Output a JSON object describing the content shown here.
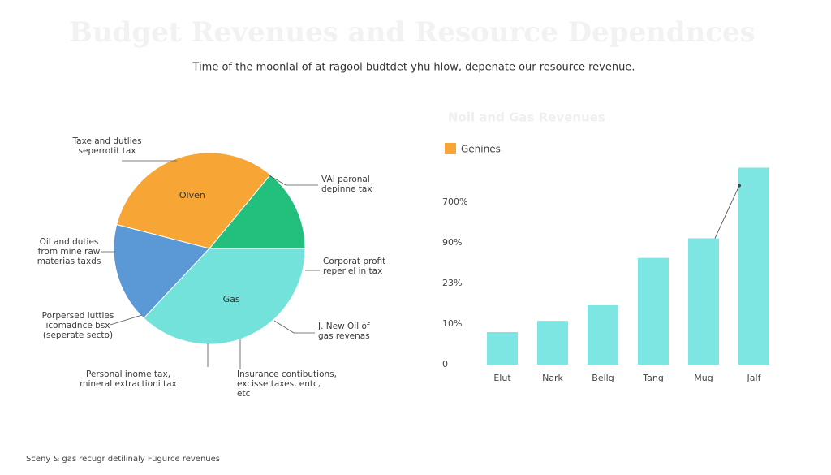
{
  "title": "Budget Revenues and Resource Dependnces",
  "subtitle": "Time  of the moonlal of at ragool budtdet yhu hlow, depenate our resource revenue.",
  "footer": "Sceny & gas recugr detilinaly Fugurce revenues",
  "chart_data": [
    {
      "type": "pie",
      "categories": [
        null,
        "Olven",
        null,
        "Gas"
      ],
      "values": [
        14,
        32,
        17,
        37
      ],
      "colors": [
        "#22c07c",
        "#f7a535",
        "#5b98d6",
        "#72e2da"
      ],
      "annotations": [
        {
          "lines": [
            "Taxe and dutlies",
            "seperrotit tax"
          ]
        },
        {
          "lines": [
            "VAI paronal",
            "depinne tax"
          ]
        },
        {
          "lines": [
            "Oil and duties",
            "from mine raw",
            "materias taxds"
          ]
        },
        {
          "lines": [
            "Corporat profit",
            "reperiel in tax"
          ]
        },
        {
          "lines": [
            "Porpersed lutties",
            "icomadnce bsx",
            "(seperate secto)"
          ]
        },
        {
          "lines": [
            "J. New Oil of",
            "gas revenas"
          ]
        },
        {
          "lines": [
            "Personal inome tax,",
            "mineral extractioni tax"
          ]
        },
        {
          "lines": [
            "Insurance contibutions,",
            "excisse taxes, entc,",
            "etc"
          ]
        }
      ]
    },
    {
      "type": "bar",
      "title": "Noil and Gas Revenues",
      "legend": "Genines",
      "legend_color": "#f7a535",
      "color": "#7ee6e2",
      "categories": [
        "Elut",
        "Nark",
        "Bellg",
        "Tang",
        "Mug",
        "Jalf"
      ],
      "values": [
        8,
        11,
        16,
        65,
        158,
        870
      ],
      "ylim": [
        0,
        900
      ],
      "yticks": [
        0,
        {
          "value": 10,
          "label": "10%"
        },
        {
          "value": 23,
          "label": "23%"
        },
        {
          "value": 90,
          "label": "90%"
        },
        {
          "value": 700,
          "label": "700%"
        }
      ]
    }
  ]
}
